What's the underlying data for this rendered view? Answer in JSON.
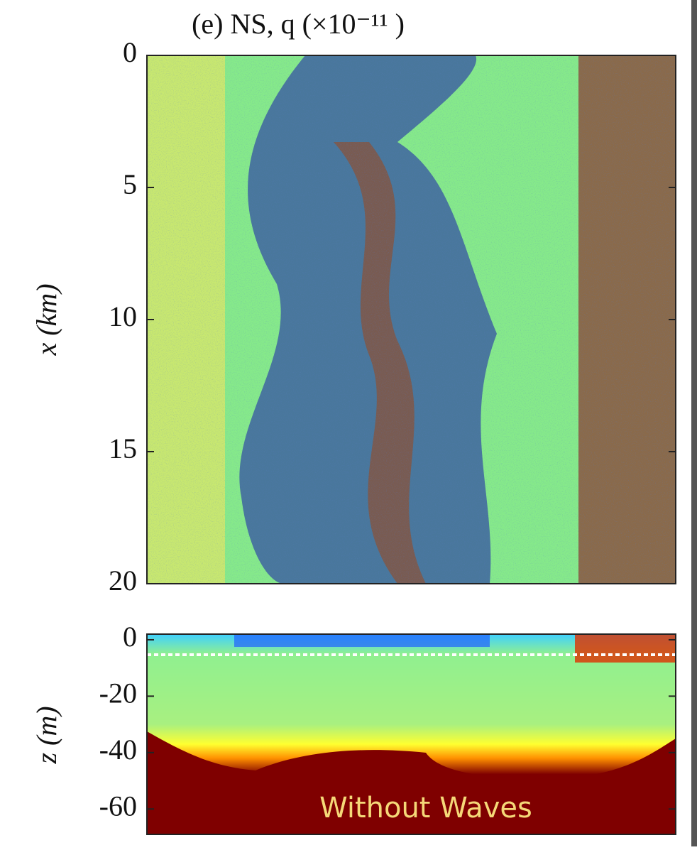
{
  "chart_data": [
    {
      "type": "heatmap",
      "title": "(e) NS, q (×10⁻¹¹ )",
      "ylabel": "x (km)",
      "ylim": [
        20,
        0
      ],
      "yticks": [
        0,
        5,
        10,
        15,
        20
      ]
    },
    {
      "type": "heatmap",
      "ylabel": "z (m)",
      "ylim": [
        -69,
        2
      ],
      "yticks": [
        0,
        -20,
        -40,
        -60
      ],
      "annotation": "Without Waves"
    }
  ]
}
